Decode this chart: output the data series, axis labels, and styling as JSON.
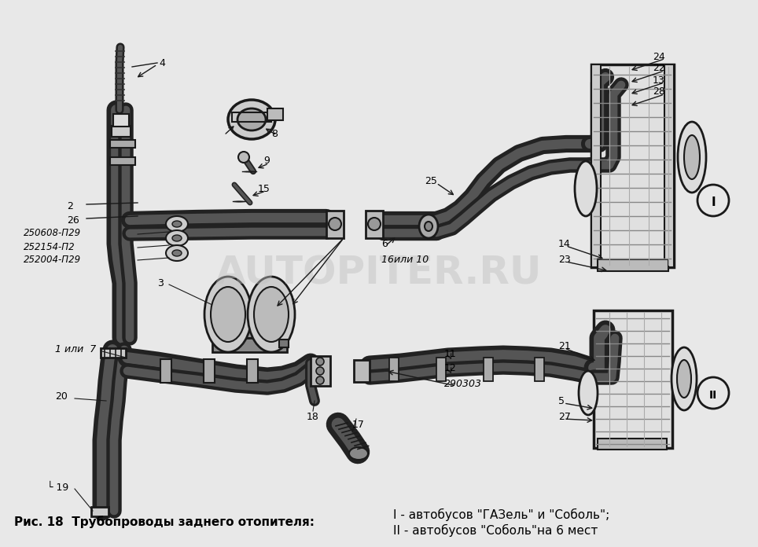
{
  "background_color": "#e8e8e8",
  "fig_width": 9.64,
  "fig_height": 6.96,
  "dpi": 100,
  "caption_line1": "Рис. 18  Трубопроводы заднего отопителя:",
  "caption_line2": "I - автобусов \"ГАЗель\" и \"Соболь\";",
  "caption_line3": "II - автобусов \"Соболь\"на 6 мест",
  "watermark": "AUTOPITER.RU"
}
